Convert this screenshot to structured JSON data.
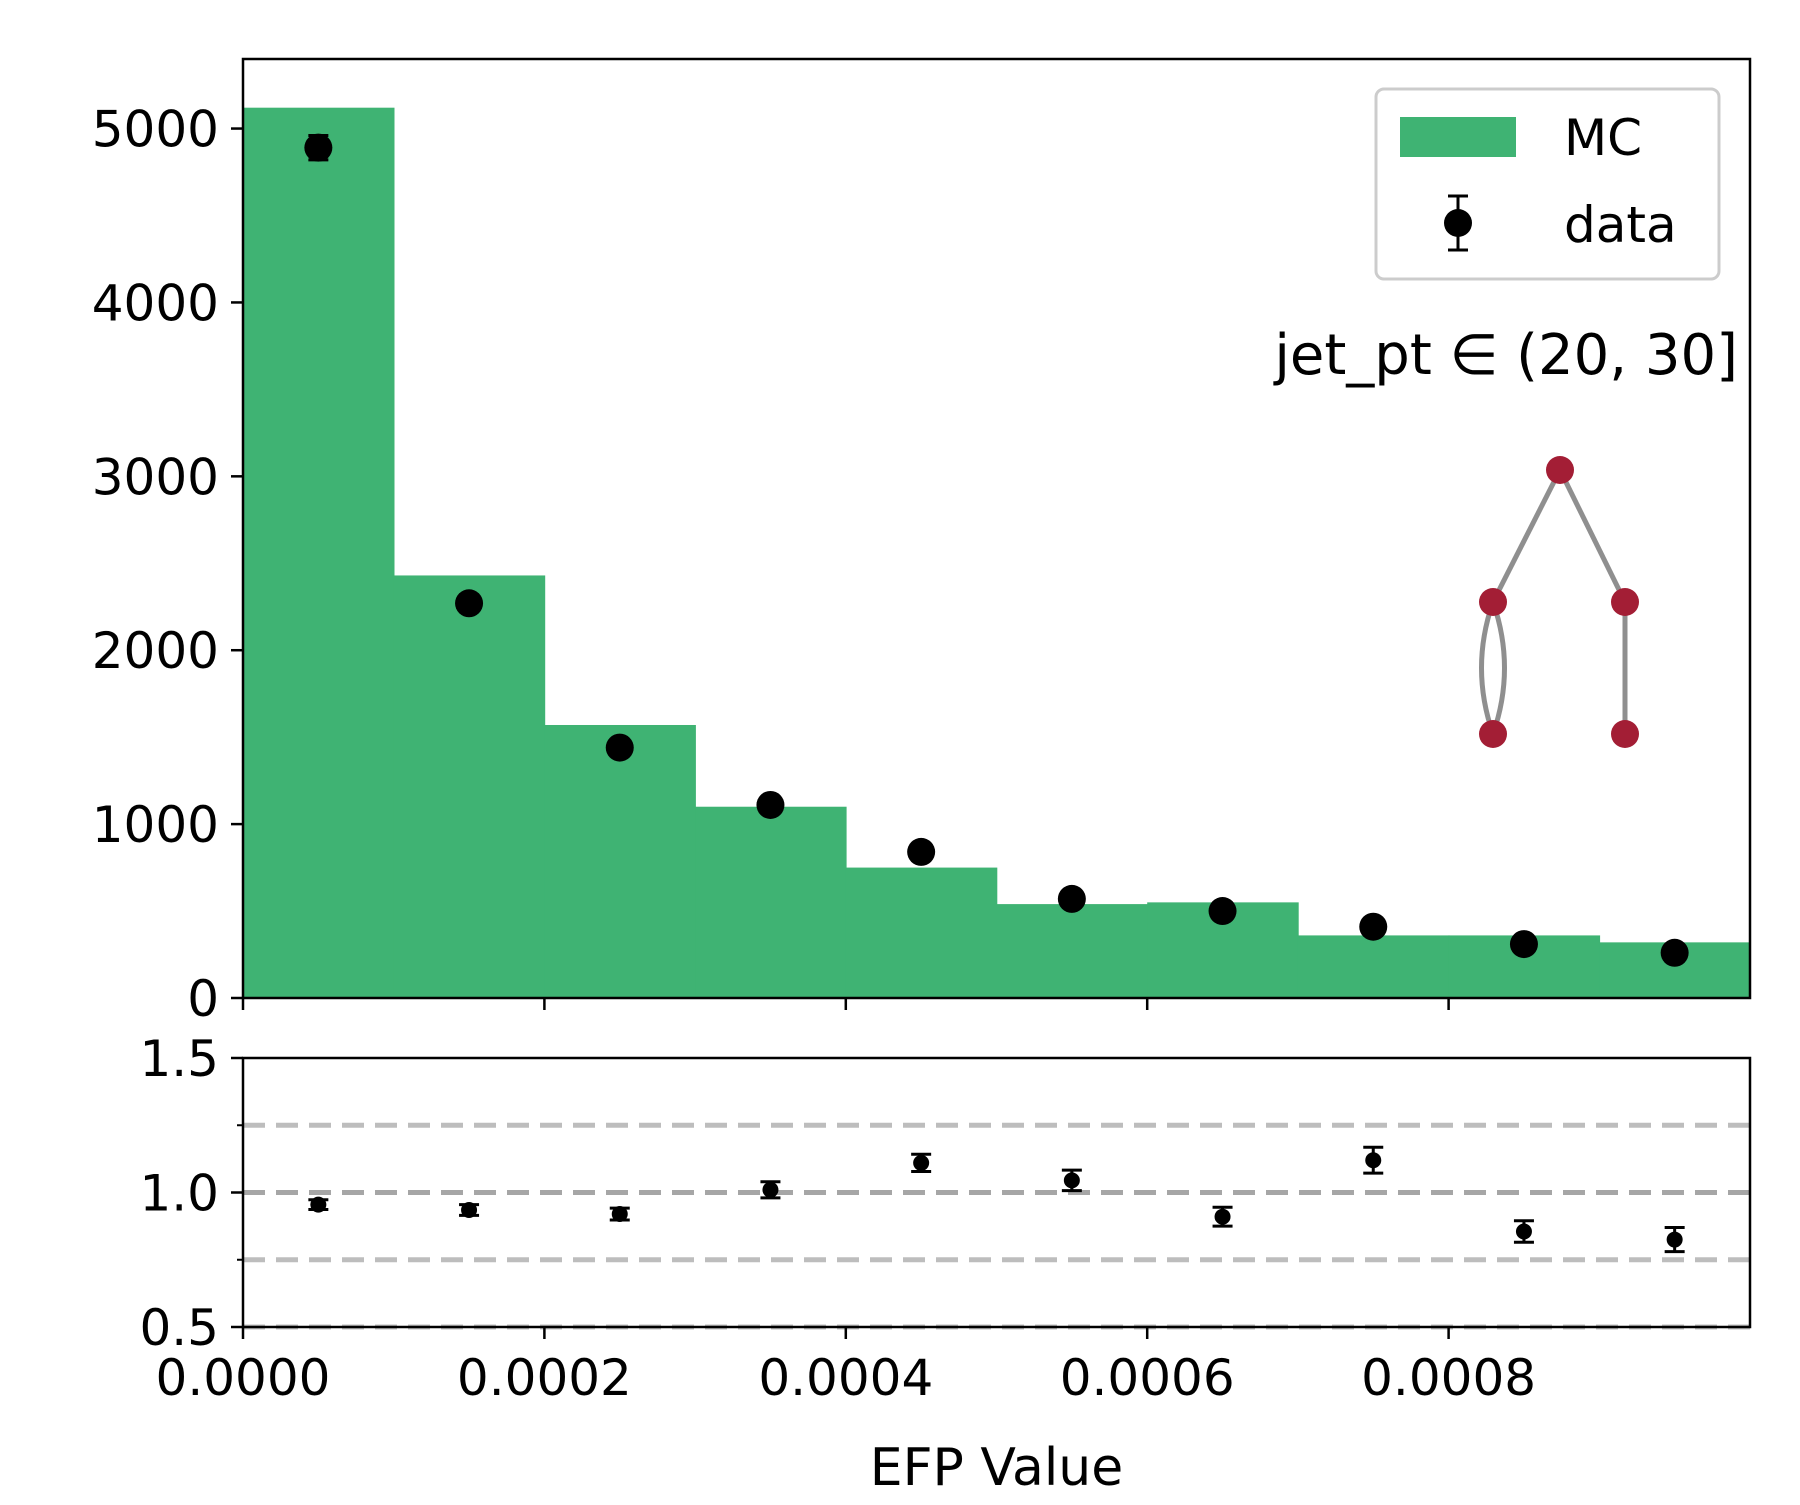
{
  "chart_data": [
    {
      "type": "bar",
      "panel": "main",
      "annotation": "jet_pt ∈ (20, 30]",
      "legend": {
        "placement": "top-right",
        "entries": [
          "MC",
          "data"
        ]
      },
      "ylim": [
        0,
        5400
      ],
      "yticks": [
        0,
        1000,
        2000,
        3000,
        4000,
        5000
      ],
      "ytick_labels": [
        "0",
        "1000",
        "2000",
        "3000",
        "4000",
        "5000"
      ],
      "x_bin_edges": [
        0,
        0.0001,
        0.0002,
        0.0003,
        0.0004,
        0.0005,
        0.0006,
        0.0007,
        0.0008,
        0.0009,
        0.001
      ],
      "series": [
        {
          "name": "MC",
          "kind": "histogram",
          "color": "#3fb373",
          "values": [
            5120,
            2430,
            1570,
            1100,
            750,
            540,
            550,
            360,
            360,
            320
          ]
        },
        {
          "name": "data",
          "kind": "errorbar",
          "color": "#000000",
          "x": [
            5e-05,
            0.00015,
            0.00025,
            0.00035,
            0.00045,
            0.00055,
            0.00065,
            0.00075,
            0.00085,
            0.00095
          ],
          "values": [
            4890,
            2270,
            1440,
            1110,
            840,
            570,
            500,
            410,
            310,
            260
          ],
          "errors": [
            70,
            48,
            38,
            33,
            29,
            24,
            22,
            20,
            18,
            16
          ]
        }
      ]
    },
    {
      "type": "scatter",
      "panel": "ratio",
      "xlabel": "EFP Value",
      "xlim": [
        0,
        0.001
      ],
      "xticks": [
        0,
        0.0002,
        0.0004,
        0.0006,
        0.0008
      ],
      "xtick_labels": [
        "0.0000",
        "0.0002",
        "0.0004",
        "0.0006",
        "0.0008"
      ],
      "ylim": [
        0.5,
        1.5
      ],
      "yticks": [
        0.5,
        1.0,
        1.5
      ],
      "ytick_labels": [
        "0.5",
        "1.0",
        "1.5"
      ],
      "reference_lines": [
        0.5,
        0.75,
        1.0,
        1.25
      ],
      "series": [
        {
          "kind": "errorbar",
          "color": "#000000",
          "x": [
            5e-05,
            0.00015,
            0.00025,
            0.00035,
            0.00045,
            0.00055,
            0.00065,
            0.00075,
            0.00085,
            0.00095
          ],
          "values": [
            0.955,
            0.935,
            0.92,
            1.01,
            1.11,
            1.045,
            0.91,
            1.12,
            0.855,
            0.825
          ],
          "errors": [
            0.018,
            0.02,
            0.022,
            0.03,
            0.032,
            0.038,
            0.035,
            0.048,
            0.04,
            0.045
          ]
        }
      ]
    }
  ],
  "colors": {
    "mc": "#3fb373",
    "data": "#000000",
    "graph_node": "#a31e35",
    "graph_edge": "#8f8f8f",
    "reference_line": "#bdbdbd"
  }
}
